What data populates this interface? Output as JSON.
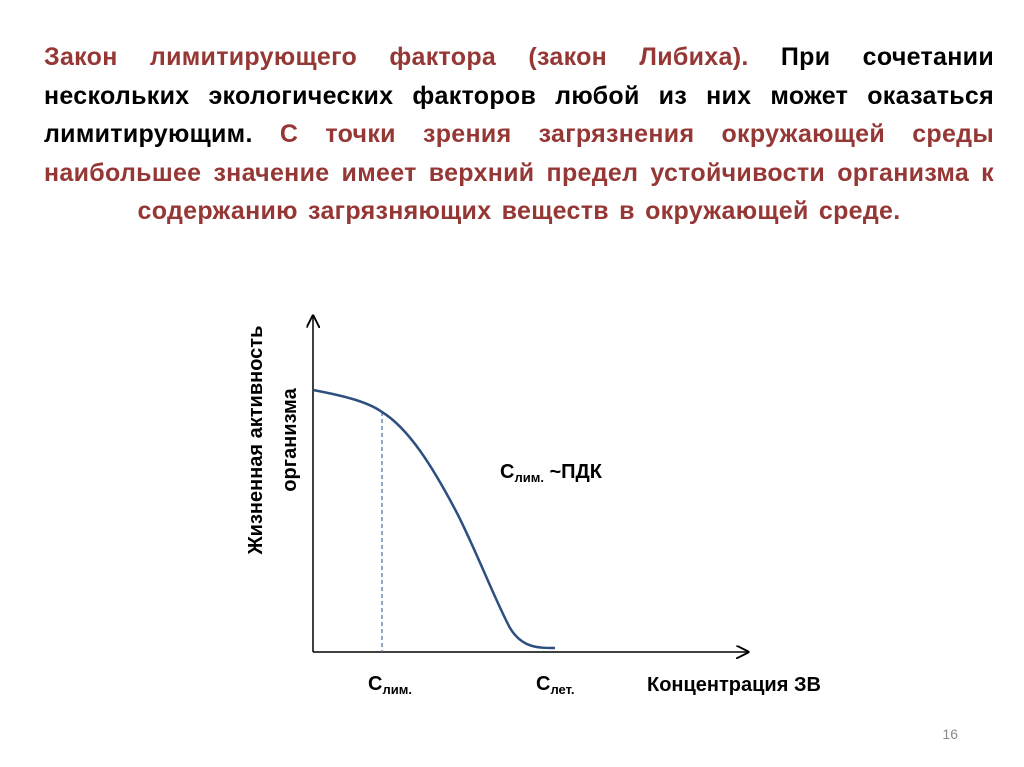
{
  "body": {
    "part1": "Закон лимитирующего фактора (закон Либиха).",
    "part2": "При сочетании нескольких экологических факторов любой из них может оказаться лимитирующим.",
    "part3": "С точки зрения загрязнения окружающей среды наибольшее значение имеет верхний предел устойчивости организма к содержанию загрязняющих веществ в окружающей среде."
  },
  "diagram": {
    "y_axis_label_line1": "Жизненная активность",
    "y_axis_label_line2": "организма",
    "x_axis_label": "Концентрация ЗВ",
    "curve_annotation_main": "С",
    "curve_annotation_sub": "лим.",
    "curve_annotation_tail": " ~ПДК",
    "tick_lim_main": "С",
    "tick_lim_sub": "лим.",
    "tick_let_main": "С",
    "tick_let_sub": "лет."
  },
  "colors": {
    "accent_red": "#953735",
    "curve_blue": "#2F4F7F",
    "dashed_line": "#4A6FA5"
  },
  "footer": {
    "page_number": "16"
  }
}
